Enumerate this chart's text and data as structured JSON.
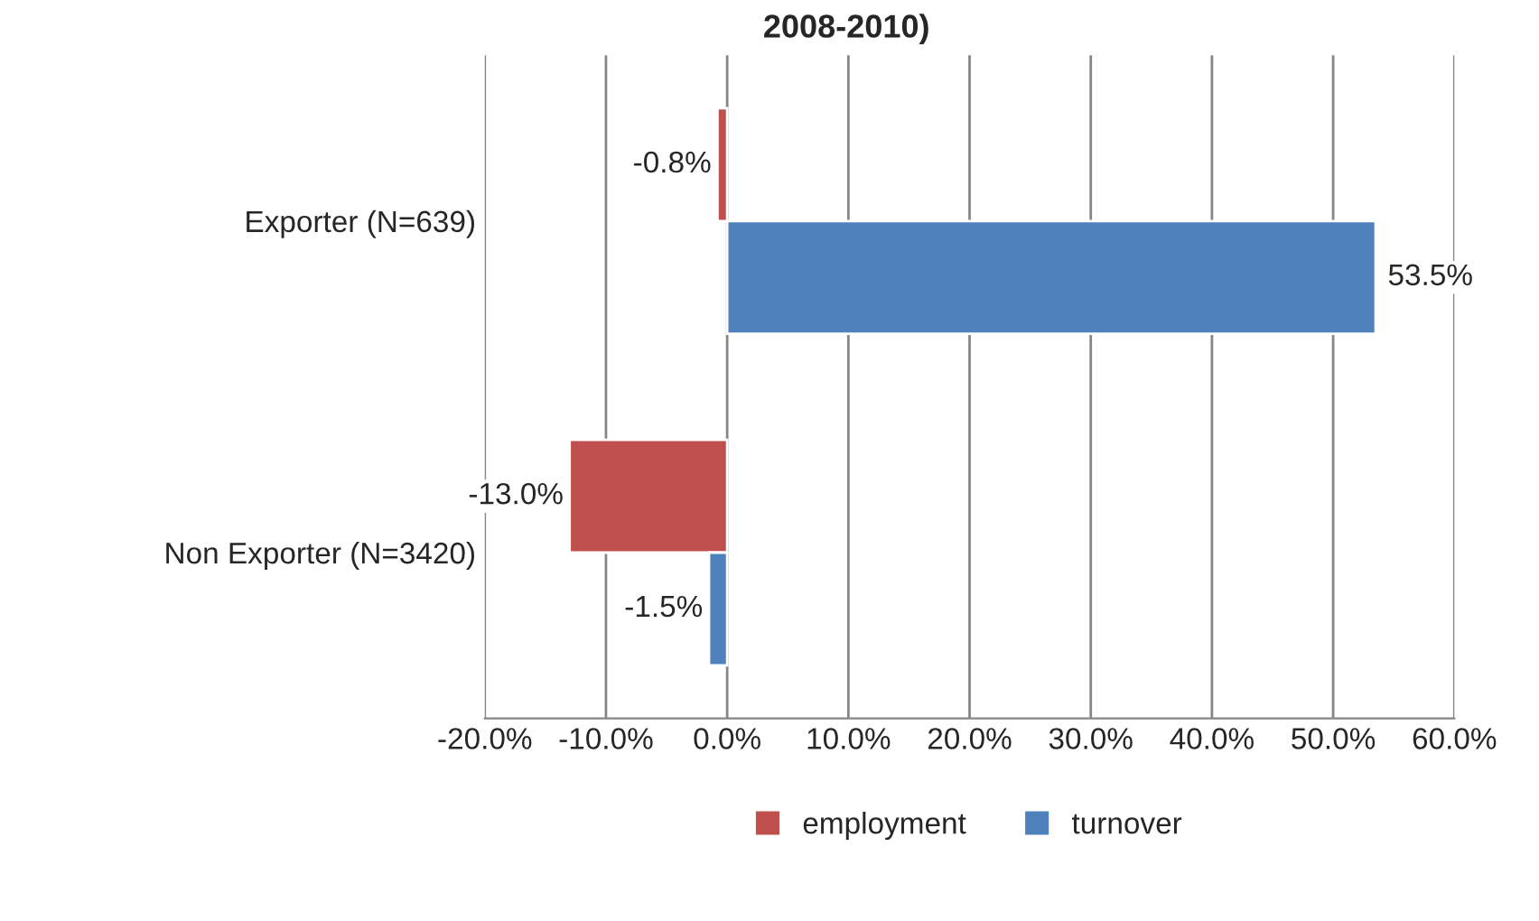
{
  "chart_data": {
    "type": "bar",
    "orientation": "horizontal",
    "title": "2008-2010)",
    "categories": [
      "Exporter (N=639)",
      "Non Exporter (N=3420)"
    ],
    "series": [
      {
        "name": "employment",
        "color": "#c0504d",
        "values": [
          -0.8,
          -13.0
        ],
        "value_labels": [
          "-0.8%",
          "-13.0%"
        ]
      },
      {
        "name": "turnover",
        "color": "#4f81bd",
        "values": [
          53.5,
          -1.5
        ],
        "value_labels": [
          "53.5%",
          "-1.5%"
        ]
      }
    ],
    "xlim": [
      -20,
      60
    ],
    "xticks": [
      {
        "value": -20,
        "label": "-20.0%"
      },
      {
        "value": -10,
        "label": "-10.0%"
      },
      {
        "value": 0,
        "label": "0.0%"
      },
      {
        "value": 10,
        "label": "10.0%"
      },
      {
        "value": 20,
        "label": "20.0%"
      },
      {
        "value": 30,
        "label": "30.0%"
      },
      {
        "value": 40,
        "label": "40.0%"
      },
      {
        "value": 50,
        "label": "50.0%"
      },
      {
        "value": 60,
        "label": "60.0%"
      }
    ],
    "grid": "x",
    "legend": "bottom"
  }
}
